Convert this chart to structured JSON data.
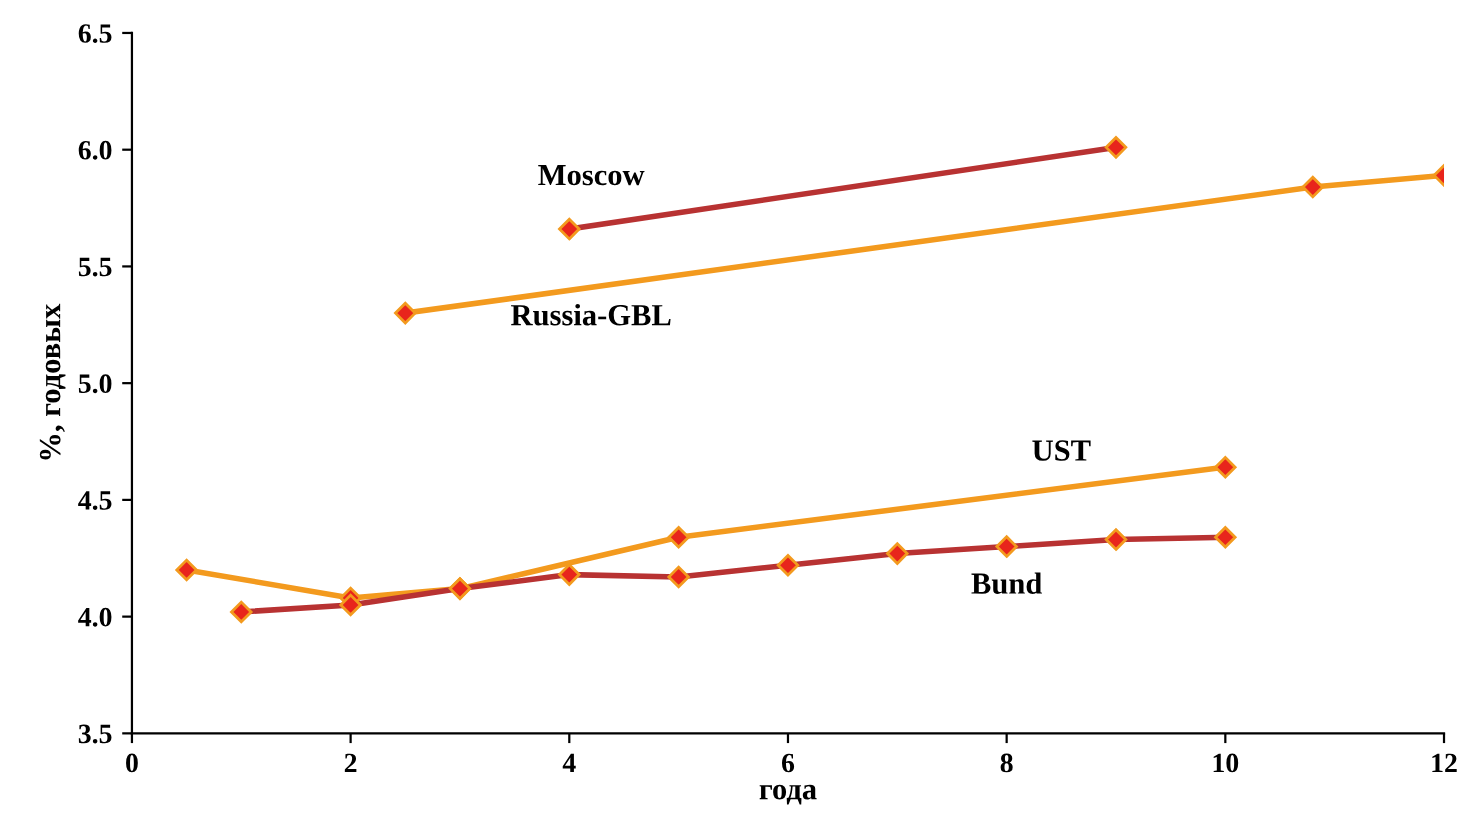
{
  "chart_data": {
    "type": "line",
    "xlabel": "года",
    "ylabel": "%, годовых",
    "xlim": [
      0,
      12
    ],
    "xticks": [
      0,
      2,
      4,
      6,
      8,
      10,
      12
    ],
    "ylim": [
      3.5,
      6.5
    ],
    "yticks": [
      3.5,
      {
        "value": 4,
        "label": "4.0"
      },
      4.5,
      {
        "value": 5,
        "label": "5.0"
      },
      5.5,
      {
        "value": 6,
        "label": "6.0"
      },
      6.5
    ],
    "grid": false,
    "legend": false,
    "marker": "diamond",
    "line_style": "solid",
    "series": [
      {
        "name": "Moscow",
        "color": "#b83232",
        "x": [
          4,
          9
        ],
        "values": [
          5.66,
          6.01
        ]
      },
      {
        "name": "Russia-GBL",
        "color": "#f39a1e",
        "x": [
          2.5,
          10.8,
          12
        ],
        "values": [
          5.3,
          5.84,
          5.89
        ]
      },
      {
        "name": "UST",
        "color": "#f39a1e",
        "x": [
          0.5,
          2,
          3,
          5,
          10
        ],
        "values": [
          4.2,
          4.08,
          4.12,
          4.34,
          4.64
        ]
      },
      {
        "name": "Bund",
        "color": "#b83232",
        "x": [
          1,
          2,
          3,
          4,
          5,
          6,
          7,
          8,
          9,
          10
        ],
        "values": [
          4.02,
          4.05,
          4.12,
          4.18,
          4.17,
          4.22,
          4.27,
          4.3,
          4.33,
          4.34
        ]
      }
    ]
  }
}
